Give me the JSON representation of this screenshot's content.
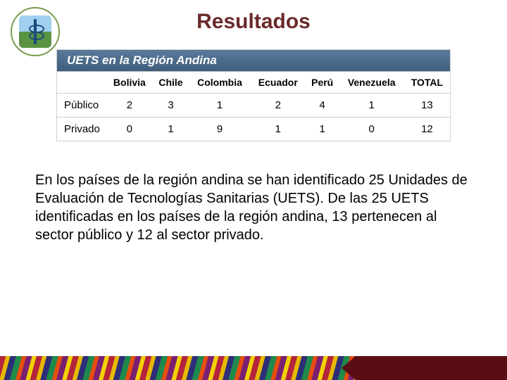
{
  "title": "Resultados",
  "table": {
    "type": "table",
    "header_band": "UETS en la Región Andina",
    "header_band_bg_top": "#5a7a99",
    "header_band_bg_bottom": "#3f5e7d",
    "header_band_color": "#ffffff",
    "columns": [
      "",
      "Bolivia",
      "Chile",
      "Colombia",
      "Ecuador",
      "Perú",
      "Venezuela",
      "TOTAL"
    ],
    "rows": [
      {
        "label": "Público",
        "values": [
          "2",
          "3",
          "1",
          "2",
          "4",
          "1",
          "13"
        ]
      },
      {
        "label": "Privado",
        "values": [
          "0",
          "1",
          "9",
          "1",
          "1",
          "0",
          "12"
        ]
      }
    ],
    "border_color": "#d0d0d0",
    "font_size": 14
  },
  "paragraph": "En los países de la región andina se han identificado 25 Unidades de Evaluación de Tecnologías Sanitarias (UETS). De las 25 UETS identificadas en los países de la región andina, 13 pertenecen al sector público y 12 al sector privado.",
  "colors": {
    "title_color": "#6b2a2a",
    "background": "#ffffff",
    "footer_solid": "#5a0e14",
    "footer_stripes": [
      "#b4243c",
      "#e6b800",
      "#2e2e78",
      "#1e8a4c",
      "#e84e10",
      "#7a2073",
      "#f2d100"
    ]
  }
}
